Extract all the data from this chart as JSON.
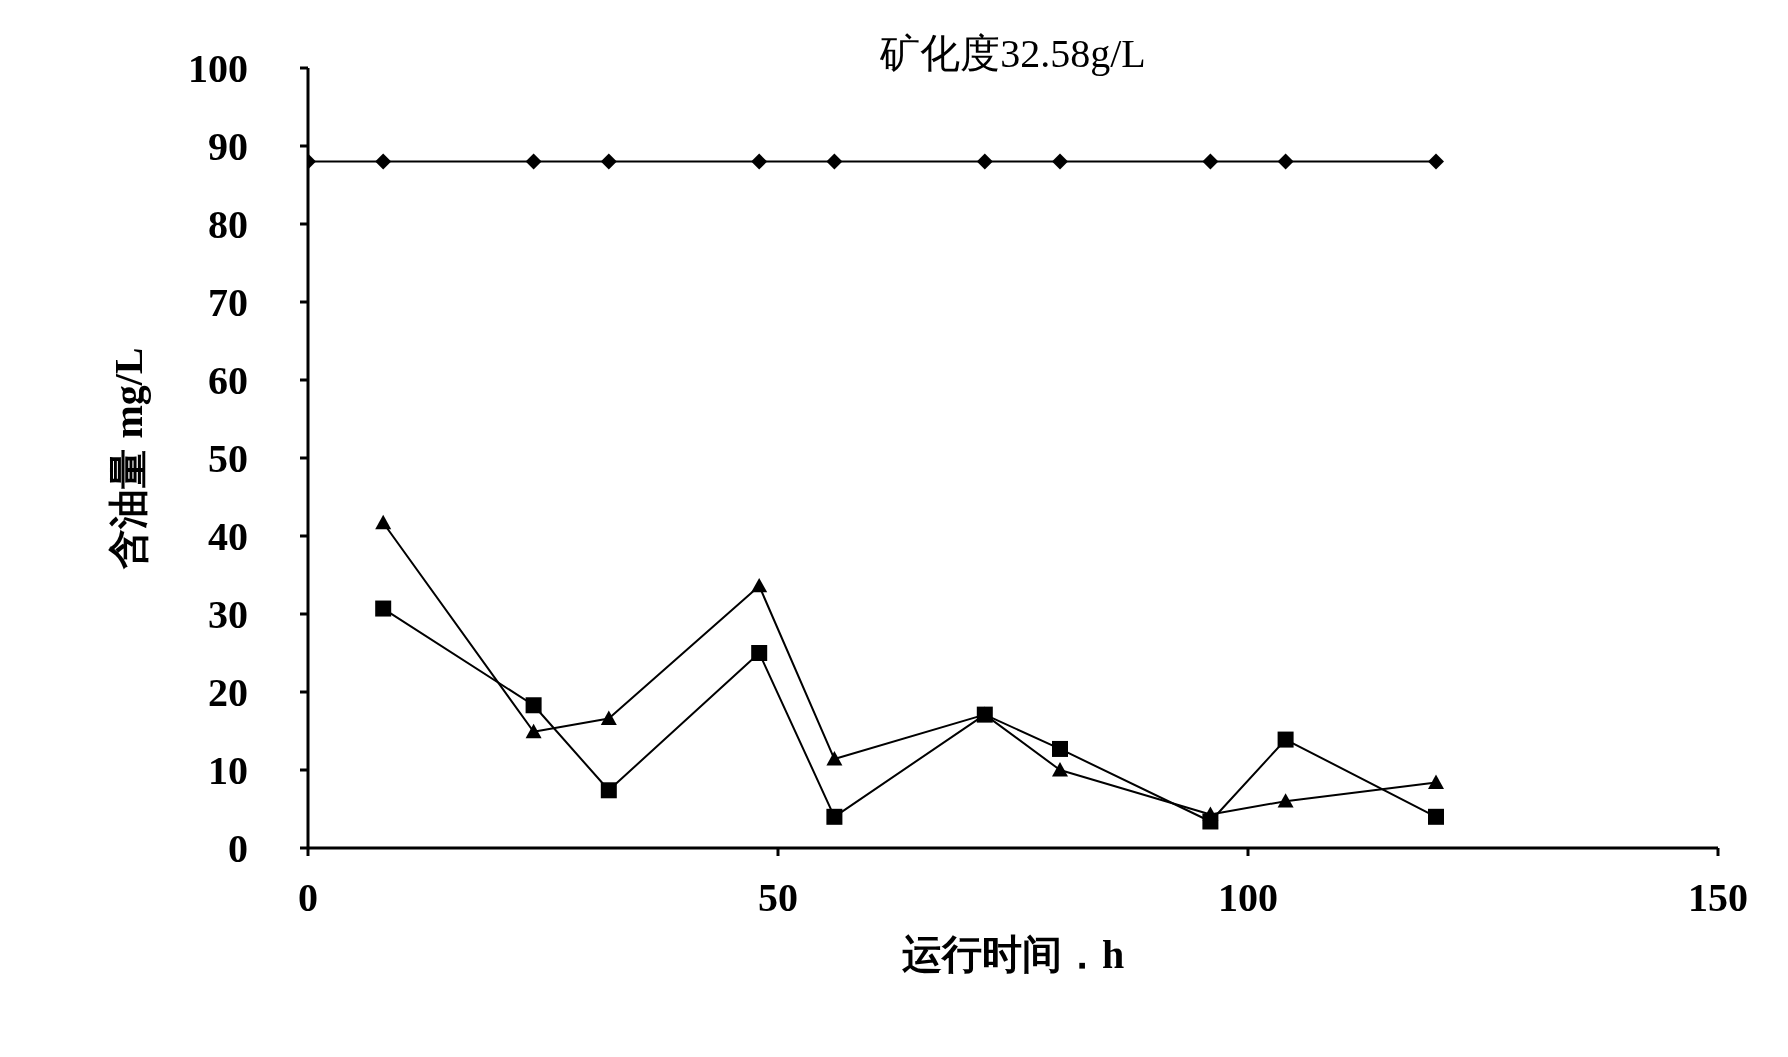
{
  "chart_data": {
    "type": "line",
    "title": "矿化度32.58g/L",
    "xlabel": "运行时间．h",
    "ylabel": "含油量 mg/L",
    "xlim": [
      0,
      150
    ],
    "xticks": [
      0,
      50,
      100,
      150
    ],
    "ylim": [
      0,
      100
    ],
    "yticks": [
      0,
      10,
      20,
      30,
      40,
      50,
      60,
      70,
      80,
      90,
      100
    ],
    "series": [
      {
        "color": "#000000",
        "marker": "diamond",
        "x": [
          0,
          8,
          24,
          32,
          48,
          56,
          72,
          80,
          96,
          104,
          120
        ],
        "values": [
          88,
          88,
          88,
          88,
          88,
          88,
          88,
          88,
          88,
          88,
          88
        ]
      },
      {
        "color": "#000000",
        "marker": "triangle",
        "x": [
          8,
          24,
          32,
          48,
          56,
          72,
          80,
          96,
          104,
          120
        ],
        "values": [
          41.7,
          14.9,
          16.6,
          33.6,
          11.4,
          17.1,
          10,
          4.3,
          6,
          8.4
        ]
      },
      {
        "color": "#000000",
        "marker": "square",
        "x": [
          8,
          24,
          32,
          48,
          56,
          72,
          80,
          96,
          104,
          120
        ],
        "values": [
          30.7,
          18.3,
          7.4,
          25,
          4,
          17.1,
          12.7,
          3.4,
          13.9,
          4
        ]
      }
    ]
  }
}
